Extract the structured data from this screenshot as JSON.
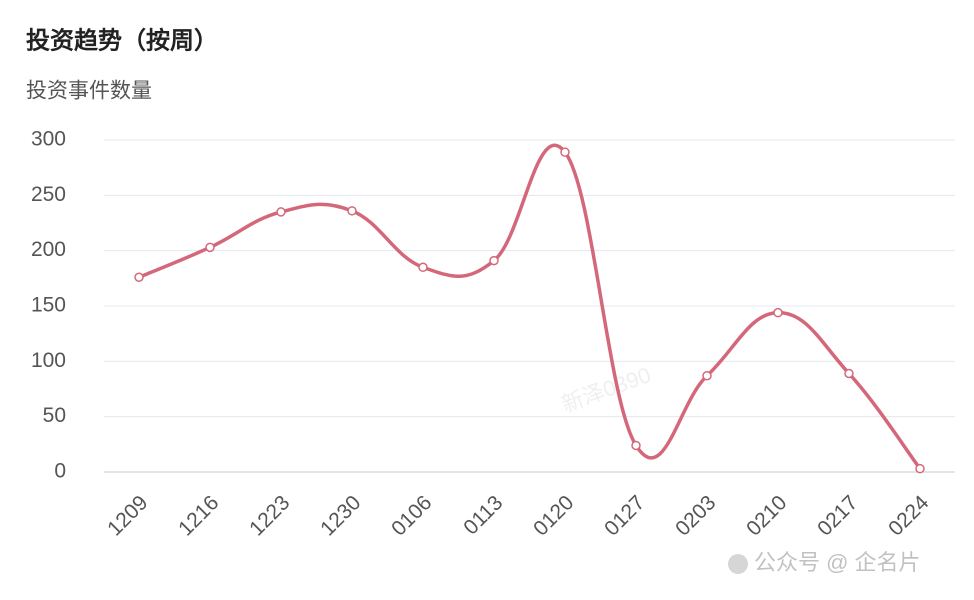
{
  "chart_data": {
    "type": "line",
    "title": "投资趋势（按周）",
    "y_label": "投资事件数量",
    "watermark": "新泽0390",
    "source": "公众号 @ 企名片",
    "categories": [
      "1209",
      "1216",
      "1223",
      "1230",
      "0106",
      "0113",
      "0120",
      "0127",
      "0203",
      "0210",
      "0217",
      "0224"
    ],
    "values": [
      176,
      203,
      235,
      236,
      185,
      191,
      289,
      24,
      87,
      144,
      89,
      3
    ],
    "color": "#d4687a",
    "smooth": true,
    "ylim": [
      0,
      300
    ],
    "yticks": [
      0,
      50,
      100,
      150,
      200,
      250,
      300
    ],
    "grid": true
  }
}
